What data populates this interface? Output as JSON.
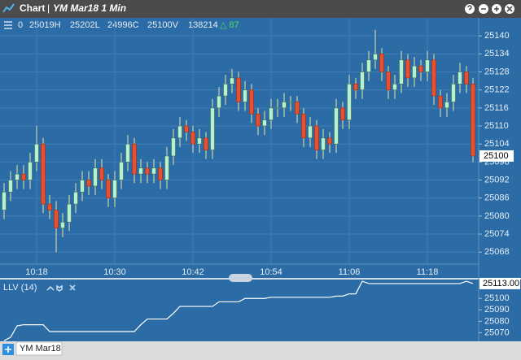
{
  "header": {
    "title": "Chart",
    "separator": "|",
    "subtitle": "YM Mar18 1 Min"
  },
  "quote_bar": {
    "items": [
      "0",
      "25019H",
      "25202L",
      "24996C",
      "25100V",
      "138214"
    ],
    "change": "△ 87"
  },
  "footer": {
    "tab": "YM Mar18"
  },
  "chart_data": [
    {
      "type": "candlestick",
      "categories": [
        null,
        null,
        null,
        null,
        null,
        "10:18",
        null,
        null,
        null,
        null,
        null,
        null,
        null,
        null,
        null,
        null,
        null,
        "10:30",
        null,
        null,
        null,
        null,
        null,
        null,
        null,
        null,
        null,
        null,
        null,
        "10:42",
        null,
        null,
        null,
        null,
        null,
        null,
        null,
        null,
        null,
        null,
        null,
        "10:54",
        null,
        null,
        null,
        null,
        null,
        null,
        null,
        null,
        null,
        null,
        null,
        "11:06",
        null,
        null,
        null,
        null,
        null,
        null,
        null,
        null,
        null,
        null,
        null,
        "11:18",
        null,
        null,
        null,
        null,
        null,
        null,
        null
      ],
      "open": [
        25082,
        25088,
        25092,
        25094,
        25092,
        25098,
        25104,
        25084,
        25082,
        25076,
        25078,
        25084,
        25088,
        25092,
        25090,
        25096,
        25092,
        25086,
        25092,
        25098,
        25104,
        25094,
        25096,
        25094,
        25096,
        25092,
        25100,
        25106,
        25110,
        25108,
        25104,
        25106,
        25102,
        25116,
        25120,
        25124,
        25126,
        25118,
        25122,
        25114,
        25110,
        25112,
        25116,
        25116,
        25118,
        25118,
        25114,
        25106,
        25110,
        25102,
        25106,
        25104,
        25116,
        25112,
        25124,
        25122,
        25128,
        25132,
        25134,
        25128,
        25122,
        25124,
        25132,
        25126,
        25130,
        25128,
        25132,
        25120,
        25116,
        25118,
        25124,
        25128,
        25124
      ],
      "high": [
        25091,
        25095,
        25097,
        25097,
        25101,
        25110,
        25106,
        25087,
        25085,
        25081,
        25087,
        25091,
        25095,
        25095,
        25099,
        25099,
        25094,
        25095,
        25101,
        25107,
        25106,
        25099,
        25098,
        25099,
        25098,
        25103,
        25109,
        25113,
        25112,
        25110,
        25109,
        25108,
        25119,
        25123,
        25127,
        25129,
        25128,
        25125,
        25124,
        25116,
        25115,
        25119,
        25119,
        25121,
        25120,
        25120,
        25116,
        25113,
        25112,
        25109,
        25108,
        25119,
        25118,
        25127,
        25126,
        25131,
        25135,
        25142,
        25136,
        25130,
        25127,
        25135,
        25134,
        25133,
        25132,
        25135,
        25134,
        25122,
        25121,
        25127,
        25131,
        25130,
        25126
      ],
      "low": [
        25079,
        25085,
        25089,
        25089,
        25089,
        25095,
        25081,
        25079,
        25068,
        25073,
        25075,
        25081,
        25085,
        25087,
        25087,
        25089,
        25083,
        25083,
        25089,
        25095,
        25091,
        25091,
        25091,
        25091,
        25089,
        25089,
        25097,
        25103,
        25105,
        25101,
        25101,
        25099,
        25099,
        25113,
        25117,
        25121,
        25115,
        25115,
        25111,
        25107,
        25107,
        25109,
        25113,
        25113,
        25115,
        25111,
        25103,
        25103,
        25099,
        25099,
        25101,
        25101,
        25109,
        25109,
        25119,
        25119,
        25125,
        25129,
        25125,
        25119,
        25119,
        25121,
        25123,
        25123,
        25125,
        25125,
        25117,
        25113,
        25113,
        25115,
        25121,
        25121,
        25098
      ],
      "close": [
        25088,
        25092,
        25094,
        25092,
        25098,
        25104,
        25084,
        25082,
        25076,
        25078,
        25084,
        25088,
        25092,
        25090,
        25096,
        25092,
        25086,
        25092,
        25098,
        25104,
        25094,
        25096,
        25094,
        25096,
        25092,
        25100,
        25106,
        25110,
        25108,
        25104,
        25106,
        25102,
        25116,
        25120,
        25124,
        25126,
        25118,
        25122,
        25114,
        25110,
        25112,
        25116,
        25116,
        25118,
        25118,
        25114,
        25106,
        25110,
        25102,
        25106,
        25104,
        25116,
        25112,
        25124,
        25122,
        25128,
        25132,
        25134,
        25128,
        25122,
        25124,
        25132,
        25126,
        25130,
        25128,
        25132,
        25120,
        25116,
        25118,
        25124,
        25128,
        25124,
        25100
      ],
      "up_color": "#b8f0cf",
      "down_color": "#e8502e",
      "ylim": [
        25064,
        25146
      ],
      "yticks": [
        25068,
        25074,
        25080,
        25086,
        25092,
        25098,
        25104,
        25110,
        25116,
        25122,
        25128,
        25134,
        25140
      ],
      "grid": true
    },
    {
      "type": "line",
      "title": "LLV (14)",
      "values": [
        25063,
        25066,
        25076,
        25077,
        25077,
        25077,
        25077,
        25071,
        25071,
        25071,
        25071,
        25071,
        25071,
        25071,
        25071,
        25071,
        25071,
        25071,
        25071,
        25071,
        25071,
        25077,
        25082,
        25082,
        25082,
        25082,
        25087,
        25093,
        25093,
        25093,
        25093,
        25093,
        25093,
        25097,
        25097,
        25097,
        25097,
        25100,
        25100,
        25100,
        25100,
        25101,
        25101,
        25101,
        25101,
        25101,
        25101,
        25101,
        25101,
        25101,
        25101,
        25102,
        25102,
        25104,
        25104,
        25115,
        25113,
        25113,
        25113,
        25113,
        25113,
        25113,
        25113,
        25113,
        25113,
        25113,
        25113,
        25113,
        25113,
        25113,
        25113,
        25115,
        25113
      ],
      "last_value_label": "25113.00",
      "color": "#ffffff",
      "ylim": [
        25062.5,
        25116.5
      ],
      "yticks": [
        25070,
        25080,
        25090,
        25100
      ]
    }
  ]
}
